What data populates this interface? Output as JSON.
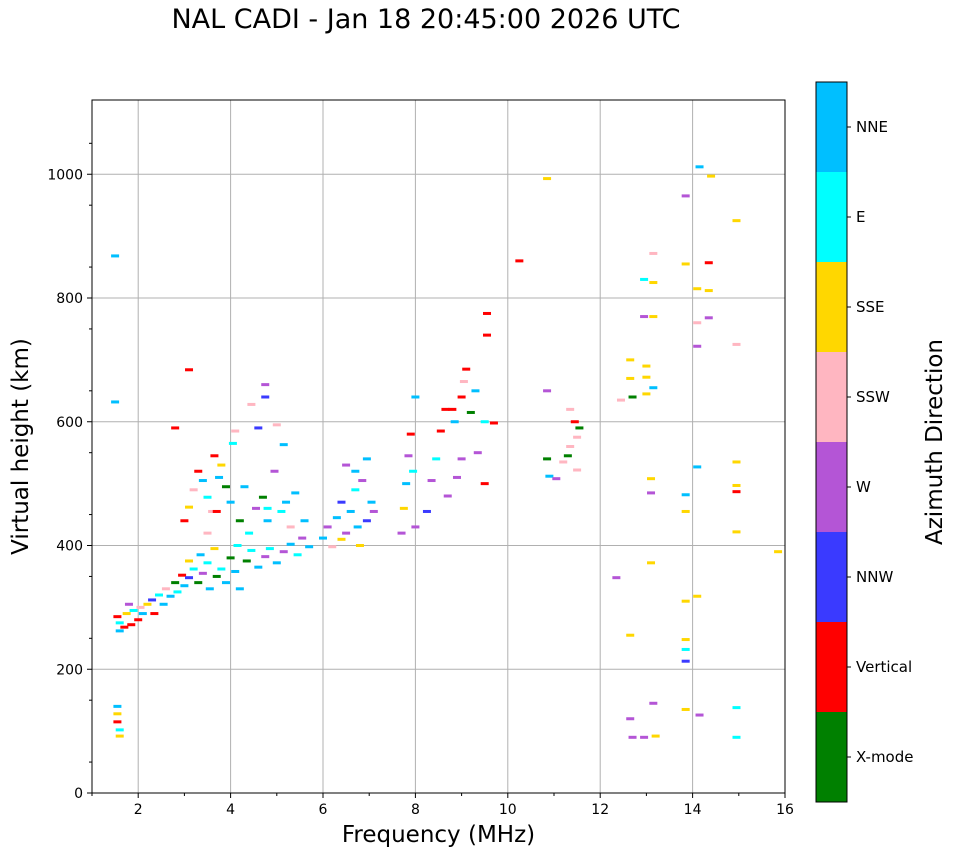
{
  "chart_data": {
    "type": "scatter",
    "title": "NAL CADI - Jan 18 20:45:00 2026 UTC",
    "xlabel": "Frequency (MHz)",
    "ylabel": "Virtual height (km)",
    "xlim": [
      1,
      16
    ],
    "ylim": [
      0,
      1120
    ],
    "xticks": [
      2,
      4,
      6,
      8,
      10,
      12,
      14,
      16
    ],
    "yticks": [
      0,
      200,
      400,
      600,
      800,
      1000
    ],
    "grid": true,
    "colorbar": {
      "label": "Azimuth Direction",
      "categories": [
        {
          "name": "X-mode",
          "color": "#008000"
        },
        {
          "name": "Vertical",
          "color": "#ff0000"
        },
        {
          "name": "NNW",
          "color": "#3a3aff"
        },
        {
          "name": "W",
          "color": "#b455d6"
        },
        {
          "name": "SSW",
          "color": "#ffb6c1"
        },
        {
          "name": "SSE",
          "color": "#ffd700"
        },
        {
          "name": "E",
          "color": "#00ffff"
        },
        {
          "name": "NNE",
          "color": "#00bfff"
        }
      ]
    },
    "points": [
      [
        1.5,
        868,
        "NNE"
      ],
      [
        1.5,
        632,
        "NNE"
      ],
      [
        1.55,
        140,
        "NNE"
      ],
      [
        1.55,
        128,
        "SSE"
      ],
      [
        1.55,
        115,
        "Vertical"
      ],
      [
        1.6,
        102,
        "E"
      ],
      [
        1.6,
        92,
        "SSE"
      ],
      [
        1.55,
        285,
        "Vertical"
      ],
      [
        1.6,
        275,
        "E"
      ],
      [
        1.6,
        262,
        "NNE"
      ],
      [
        1.7,
        268,
        "Vertical"
      ],
      [
        1.75,
        290,
        "SSE"
      ],
      [
        1.8,
        305,
        "W"
      ],
      [
        1.85,
        272,
        "Vertical"
      ],
      [
        1.9,
        295,
        "E"
      ],
      [
        2.0,
        280,
        "Vertical"
      ],
      [
        2.05,
        300,
        "SSW"
      ],
      [
        2.1,
        290,
        "NNE"
      ],
      [
        2.2,
        305,
        "SSE"
      ],
      [
        2.3,
        312,
        "NNW"
      ],
      [
        2.35,
        290,
        "Vertical"
      ],
      [
        2.45,
        320,
        "E"
      ],
      [
        2.55,
        305,
        "NNE"
      ],
      [
        2.6,
        330,
        "SSW"
      ],
      [
        2.7,
        318,
        "NNE"
      ],
      [
        2.8,
        340,
        "X-mode"
      ],
      [
        2.85,
        325,
        "E"
      ],
      [
        2.95,
        352,
        "Vertical"
      ],
      [
        3.0,
        335,
        "NNE"
      ],
      [
        3.1,
        348,
        "NNW"
      ],
      [
        3.1,
        375,
        "SSE"
      ],
      [
        3.2,
        362,
        "E"
      ],
      [
        3.3,
        340,
        "X-mode"
      ],
      [
        3.35,
        385,
        "NNE"
      ],
      [
        3.4,
        355,
        "W"
      ],
      [
        3.5,
        372,
        "E"
      ],
      [
        3.55,
        330,
        "NNE"
      ],
      [
        3.65,
        395,
        "SSE"
      ],
      [
        3.7,
        350,
        "X-mode"
      ],
      [
        3.8,
        362,
        "E"
      ],
      [
        3.9,
        340,
        "NNE"
      ],
      [
        4.0,
        380,
        "X-mode"
      ],
      [
        4.1,
        358,
        "NNE"
      ],
      [
        4.15,
        400,
        "E"
      ],
      [
        4.2,
        330,
        "NNE"
      ],
      [
        4.35,
        375,
        "X-mode"
      ],
      [
        4.45,
        392,
        "E"
      ],
      [
        4.6,
        365,
        "NNE"
      ],
      [
        4.75,
        382,
        "W"
      ],
      [
        4.85,
        395,
        "E"
      ],
      [
        5.0,
        372,
        "NNE"
      ],
      [
        5.15,
        390,
        "W"
      ],
      [
        5.3,
        402,
        "NNE"
      ],
      [
        5.45,
        385,
        "E"
      ],
      [
        5.55,
        412,
        "W"
      ],
      [
        5.7,
        398,
        "NNE"
      ],
      [
        3.0,
        440,
        "Vertical"
      ],
      [
        3.1,
        462,
        "SSE"
      ],
      [
        3.2,
        490,
        "SSW"
      ],
      [
        3.3,
        520,
        "Vertical"
      ],
      [
        3.4,
        505,
        "NNE"
      ],
      [
        3.5,
        478,
        "E"
      ],
      [
        3.6,
        455,
        "SSW"
      ],
      [
        3.65,
        545,
        "Vertical"
      ],
      [
        3.75,
        510,
        "NNE"
      ],
      [
        3.8,
        530,
        "SSE"
      ],
      [
        3.9,
        495,
        "X-mode"
      ],
      [
        4.0,
        470,
        "NNE"
      ],
      [
        4.05,
        565,
        "E"
      ],
      [
        4.1,
        585,
        "SSW"
      ],
      [
        4.2,
        440,
        "X-mode"
      ],
      [
        4.3,
        495,
        "NNE"
      ],
      [
        4.4,
        420,
        "E"
      ],
      [
        4.45,
        628,
        "SSW"
      ],
      [
        4.55,
        460,
        "W"
      ],
      [
        4.7,
        478,
        "X-mode"
      ],
      [
        4.8,
        440,
        "NNE"
      ],
      [
        4.95,
        520,
        "W"
      ],
      [
        5.0,
        595,
        "SSW"
      ],
      [
        5.1,
        455,
        "E"
      ],
      [
        5.2,
        470,
        "NNE"
      ],
      [
        5.3,
        430,
        "SSW"
      ],
      [
        5.4,
        485,
        "NNE"
      ],
      [
        4.6,
        590,
        "NNW"
      ],
      [
        4.75,
        660,
        "W"
      ],
      [
        4.75,
        640,
        "NNW"
      ],
      [
        5.15,
        563,
        "NNE"
      ],
      [
        3.1,
        684,
        "Vertical"
      ],
      [
        2.8,
        590,
        "Vertical"
      ],
      [
        4.8,
        460,
        "E"
      ],
      [
        5.6,
        440,
        "NNE"
      ],
      [
        3.5,
        420,
        "SSW"
      ],
      [
        3.7,
        455,
        "Vertical"
      ],
      [
        6.0,
        412,
        "NNE"
      ],
      [
        6.1,
        430,
        "W"
      ],
      [
        6.2,
        398,
        "SSW"
      ],
      [
        6.3,
        445,
        "NNE"
      ],
      [
        6.4,
        470,
        "NNW"
      ],
      [
        6.5,
        420,
        "W"
      ],
      [
        6.6,
        455,
        "NNE"
      ],
      [
        6.7,
        490,
        "E"
      ],
      [
        6.75,
        430,
        "NNE"
      ],
      [
        6.85,
        505,
        "W"
      ],
      [
        6.95,
        440,
        "NNW"
      ],
      [
        7.05,
        470,
        "NNE"
      ],
      [
        7.1,
        455,
        "W"
      ],
      [
        6.5,
        530,
        "W"
      ],
      [
        6.7,
        520,
        "NNE"
      ],
      [
        6.95,
        540,
        "NNE"
      ],
      [
        6.4,
        410,
        "SSE"
      ],
      [
        6.8,
        400,
        "SSE"
      ],
      [
        7.7,
        420,
        "W"
      ],
      [
        7.75,
        460,
        "SSE"
      ],
      [
        7.8,
        500,
        "NNE"
      ],
      [
        7.85,
        545,
        "W"
      ],
      [
        7.9,
        580,
        "Vertical"
      ],
      [
        7.95,
        520,
        "E"
      ],
      [
        8.0,
        640,
        "NNE"
      ],
      [
        8.0,
        430,
        "W"
      ],
      [
        8.25,
        455,
        "NNW"
      ],
      [
        8.35,
        505,
        "W"
      ],
      [
        8.45,
        540,
        "E"
      ],
      [
        8.55,
        585,
        "Vertical"
      ],
      [
        8.65,
        620,
        "Vertical"
      ],
      [
        8.7,
        480,
        "W"
      ],
      [
        8.85,
        600,
        "NNE"
      ],
      [
        8.9,
        510,
        "W"
      ],
      [
        9.0,
        640,
        "Vertical"
      ],
      [
        9.05,
        665,
        "SSW"
      ],
      [
        9.1,
        685,
        "Vertical"
      ],
      [
        9.2,
        615,
        "X-mode"
      ],
      [
        9.3,
        650,
        "NNE"
      ],
      [
        9.35,
        550,
        "W"
      ],
      [
        9.5,
        600,
        "E"
      ],
      [
        9.55,
        740,
        "Vertical"
      ],
      [
        9.55,
        775,
        "Vertical"
      ],
      [
        9.7,
        598,
        "Vertical"
      ],
      [
        8.8,
        620,
        "Vertical"
      ],
      [
        9.5,
        500,
        "Vertical"
      ],
      [
        9.0,
        540,
        "W"
      ],
      [
        10.25,
        860,
        "Vertical"
      ],
      [
        10.85,
        993,
        "SSE"
      ],
      [
        10.85,
        650,
        "W"
      ],
      [
        10.85,
        540,
        "X-mode"
      ],
      [
        10.9,
        512,
        "NNE"
      ],
      [
        11.05,
        508,
        "W"
      ],
      [
        11.2,
        535,
        "SSW"
      ],
      [
        11.3,
        545,
        "X-mode"
      ],
      [
        11.35,
        620,
        "SSW"
      ],
      [
        11.45,
        600,
        "Vertical"
      ],
      [
        11.5,
        575,
        "SSW"
      ],
      [
        11.55,
        590,
        "X-mode"
      ],
      [
        11.5,
        522,
        "SSW"
      ],
      [
        11.35,
        560,
        "SSW"
      ],
      [
        12.35,
        348,
        "W"
      ],
      [
        12.45,
        635,
        "SSW"
      ],
      [
        12.65,
        700,
        "SSE"
      ],
      [
        12.65,
        670,
        "SSE"
      ],
      [
        12.7,
        640,
        "X-mode"
      ],
      [
        12.65,
        255,
        "SSE"
      ],
      [
        12.65,
        120,
        "W"
      ],
      [
        12.7,
        90,
        "W"
      ],
      [
        12.95,
        830,
        "E"
      ],
      [
        12.95,
        770,
        "W"
      ],
      [
        13.0,
        690,
        "SSE"
      ],
      [
        13.0,
        672,
        "SSE"
      ],
      [
        13.0,
        645,
        "SSE"
      ],
      [
        12.95,
        90,
        "W"
      ],
      [
        13.15,
        872,
        "SSW"
      ],
      [
        13.15,
        825,
        "SSE"
      ],
      [
        13.15,
        770,
        "SSE"
      ],
      [
        13.15,
        655,
        "NNE"
      ],
      [
        13.1,
        508,
        "SSE"
      ],
      [
        13.1,
        485,
        "W"
      ],
      [
        13.1,
        372,
        "SSE"
      ],
      [
        13.15,
        145,
        "W"
      ],
      [
        13.2,
        92,
        "SSE"
      ],
      [
        13.85,
        965,
        "W"
      ],
      [
        13.85,
        855,
        "SSE"
      ],
      [
        13.85,
        482,
        "NNE"
      ],
      [
        13.85,
        455,
        "SSE"
      ],
      [
        13.85,
        310,
        "SSE"
      ],
      [
        13.85,
        248,
        "SSE"
      ],
      [
        13.85,
        232,
        "E"
      ],
      [
        13.85,
        213,
        "NNW"
      ],
      [
        13.85,
        135,
        "SSE"
      ],
      [
        14.15,
        1012,
        "NNE"
      ],
      [
        14.1,
        815,
        "SSE"
      ],
      [
        14.1,
        760,
        "SSW"
      ],
      [
        14.1,
        722,
        "W"
      ],
      [
        14.1,
        527,
        "NNE"
      ],
      [
        14.1,
        318,
        "SSE"
      ],
      [
        14.15,
        126,
        "W"
      ],
      [
        14.35,
        857,
        "Vertical"
      ],
      [
        14.35,
        812,
        "SSE"
      ],
      [
        14.35,
        768,
        "W"
      ],
      [
        14.4,
        997,
        "SSE"
      ],
      [
        14.95,
        925,
        "SSE"
      ],
      [
        14.95,
        725,
        "SSW"
      ],
      [
        14.95,
        535,
        "SSE"
      ],
      [
        14.95,
        497,
        "SSE"
      ],
      [
        14.95,
        487,
        "Vertical"
      ],
      [
        14.95,
        422,
        "SSE"
      ],
      [
        14.95,
        138,
        "E"
      ],
      [
        14.95,
        90,
        "E"
      ],
      [
        15.85,
        390,
        "SSE"
      ]
    ]
  }
}
